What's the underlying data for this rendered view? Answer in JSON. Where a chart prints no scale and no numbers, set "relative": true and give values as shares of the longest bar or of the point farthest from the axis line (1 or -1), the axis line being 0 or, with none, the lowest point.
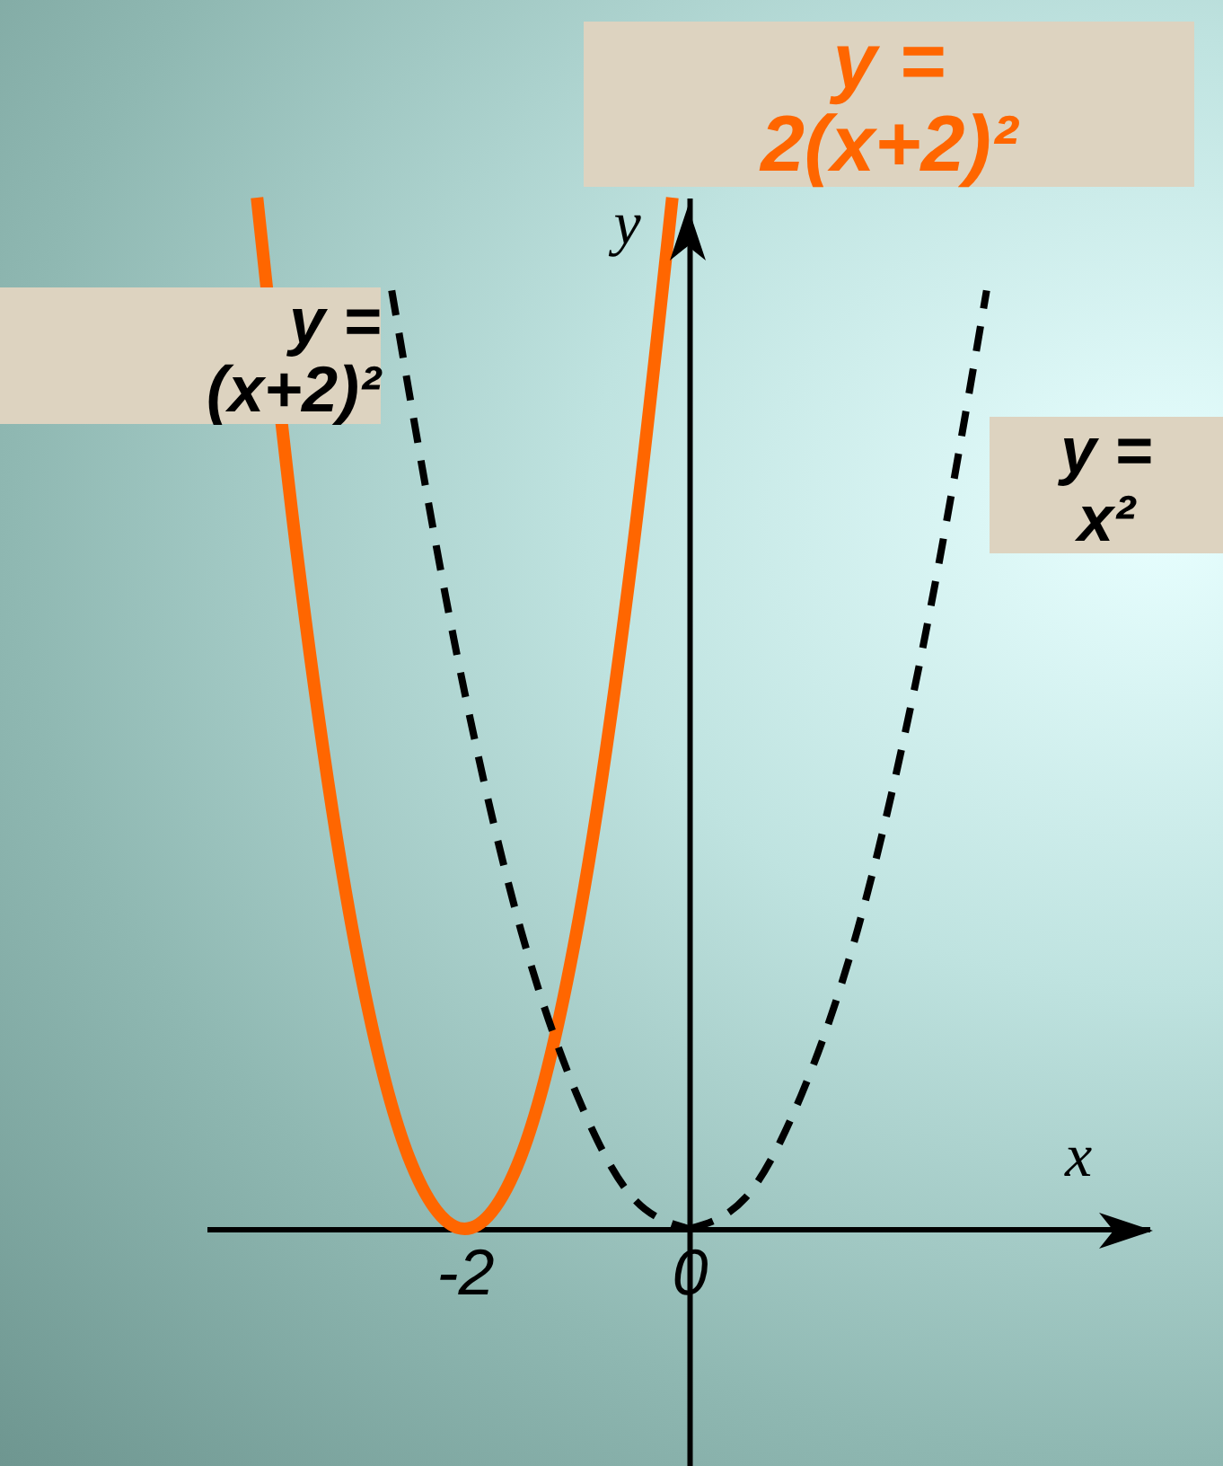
{
  "chart_data": {
    "type": "line",
    "xlabel": "x",
    "ylabel": "y",
    "relative": true,
    "xlim": [
      -4.3,
      4.1
    ],
    "xticks": [
      -2,
      0
    ],
    "series": [
      {
        "name": "y = 2(x+2)²",
        "color": "#ff6600",
        "line_style": "solid",
        "x": [
          -3.85,
          -3.5,
          -3,
          -2.5,
          -2,
          -1.5,
          -1,
          -0.5,
          -0.15
        ],
        "values": [
          1.0,
          0.66,
          0.29,
          0.07,
          0,
          0.07,
          0.29,
          0.66,
          1.0
        ]
      },
      {
        "name": "y = (x+2)²",
        "color": "#000000",
        "line_style": "dashed",
        "x": [
          -2.65,
          -2,
          -1.5,
          -1,
          -0.5,
          0
        ],
        "values": [
          0.91,
          0.52,
          0.29,
          0.13,
          0.03,
          0
        ]
      },
      {
        "name": "y = x²",
        "color": "#000000",
        "line_style": "dashed",
        "x": [
          0,
          0.5,
          1,
          1.5,
          2,
          2.65
        ],
        "values": [
          0,
          0.03,
          0.13,
          0.29,
          0.52,
          0.91
        ]
      }
    ]
  }
}
